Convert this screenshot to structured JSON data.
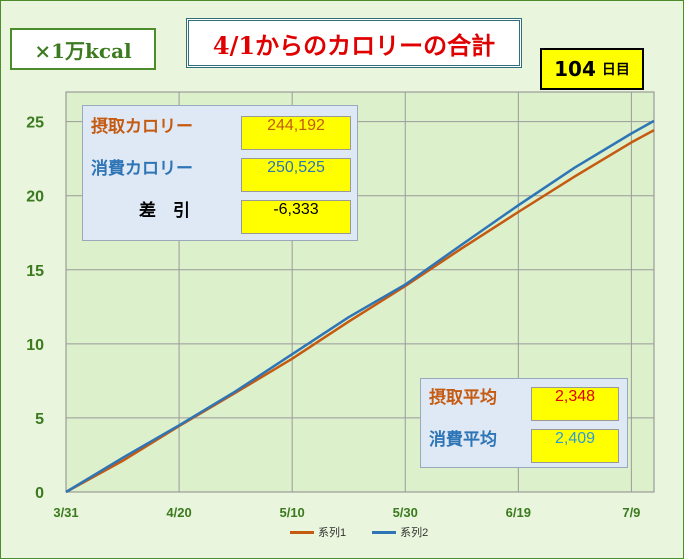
{
  "unit_label": "×1万kcal",
  "title": "4/1からのカロリーの合計",
  "day_counter": {
    "value": "104",
    "unit": "日目"
  },
  "stats": {
    "intake": {
      "label": "摂取カロリー",
      "value": "244,192"
    },
    "burn": {
      "label": "消費カロリー",
      "value": "250,525"
    },
    "diff": {
      "label": "差　引",
      "value": "-6,333"
    }
  },
  "averages": {
    "intake": {
      "label": "摂取平均",
      "value": "2,348"
    },
    "burn": {
      "label": "消費平均",
      "value": "2,409"
    }
  },
  "colors": {
    "series1": "#c55a11",
    "series2": "#2e75b6",
    "axis_text": "#3b7a1f",
    "plot_bg": "#ddf0cc",
    "grid": "#9a9a9a"
  },
  "chart_data": {
    "type": "line",
    "x_ticks": [
      "3/31",
      "4/20",
      "5/10",
      "5/30",
      "6/19",
      "7/9"
    ],
    "x_range": [
      0,
      104
    ],
    "ylim": [
      0,
      27
    ],
    "y_ticks": [
      "0",
      "5",
      "10",
      "15",
      "20",
      "25"
    ],
    "grid": true,
    "legend": "bottom",
    "series": [
      {
        "name": "系列1",
        "x": [
          0,
          10,
          20,
          30,
          40,
          50,
          60,
          70,
          80,
          90,
          100,
          104
        ],
        "values": [
          0,
          2.1,
          4.45,
          6.7,
          9.0,
          11.5,
          13.9,
          16.45,
          18.9,
          21.3,
          23.6,
          24.42
        ]
      },
      {
        "name": "系列2",
        "x": [
          0,
          10,
          20,
          30,
          40,
          50,
          60,
          70,
          80,
          90,
          100,
          104
        ],
        "values": [
          0,
          2.3,
          4.5,
          6.8,
          9.3,
          11.8,
          14.0,
          16.7,
          19.35,
          21.9,
          24.2,
          25.05
        ]
      }
    ]
  }
}
